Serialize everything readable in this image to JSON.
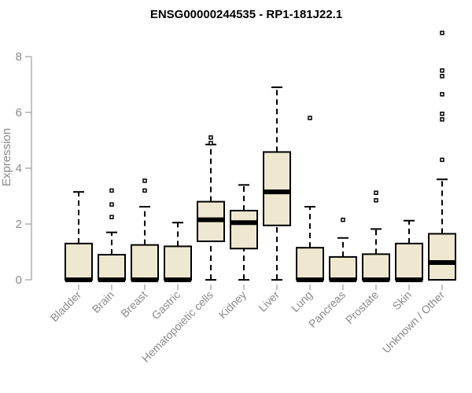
{
  "chart_data": {
    "type": "box",
    "title": "ENSG00000244535 - RP1-181J22.1",
    "ylabel": "Expression",
    "xlabel": "",
    "ylim": [
      0,
      9
    ],
    "yticks": [
      0,
      2,
      4,
      6,
      8
    ],
    "box_fill": "#efe8d0",
    "categories": [
      "Bladder",
      "Brain",
      "Breast",
      "Gastric",
      "Hematopoietic cells",
      "Kidney",
      "Liver",
      "Lung",
      "Pancreas",
      "Prostate",
      "Skin",
      "Unknown / Other"
    ],
    "boxes": [
      {
        "min": 0,
        "q1": 0,
        "median": 0,
        "q3": 1.3,
        "max": 3.15,
        "outliers": []
      },
      {
        "min": 0,
        "q1": 0,
        "median": 0,
        "q3": 0.9,
        "max": 1.7,
        "outliers": [
          2.25,
          2.7,
          3.2
        ]
      },
      {
        "min": 0,
        "q1": 0,
        "median": 0,
        "q3": 1.25,
        "max": 2.62,
        "outliers": [
          3.2,
          3.55
        ]
      },
      {
        "min": 0,
        "q1": 0,
        "median": 0,
        "q3": 1.2,
        "max": 2.05,
        "outliers": []
      },
      {
        "min": 0,
        "q1": 1.38,
        "median": 2.15,
        "q3": 2.8,
        "max": 4.85,
        "outliers": [
          4.9,
          5.1
        ]
      },
      {
        "min": 0,
        "q1": 1.12,
        "median": 2.05,
        "q3": 2.48,
        "max": 3.4,
        "outliers": []
      },
      {
        "min": 0,
        "q1": 1.95,
        "median": 3.15,
        "q3": 4.58,
        "max": 6.9,
        "outliers": []
      },
      {
        "min": 0,
        "q1": 0,
        "median": 0,
        "q3": 1.15,
        "max": 2.62,
        "outliers": [
          5.8
        ]
      },
      {
        "min": 0,
        "q1": 0,
        "median": 0,
        "q3": 0.82,
        "max": 1.5,
        "outliers": [
          2.15
        ]
      },
      {
        "min": 0,
        "q1": 0,
        "median": 0,
        "q3": 0.92,
        "max": 1.82,
        "outliers": [
          2.85,
          3.12
        ]
      },
      {
        "min": 0,
        "q1": 0,
        "median": 0,
        "q3": 1.3,
        "max": 2.12,
        "outliers": []
      },
      {
        "min": 0,
        "q1": 0,
        "median": 0.62,
        "q3": 1.65,
        "max": 3.6,
        "outliers": [
          4.3,
          5.75,
          5.95,
          6.65,
          7.3,
          7.5,
          8.85
        ]
      }
    ]
  }
}
